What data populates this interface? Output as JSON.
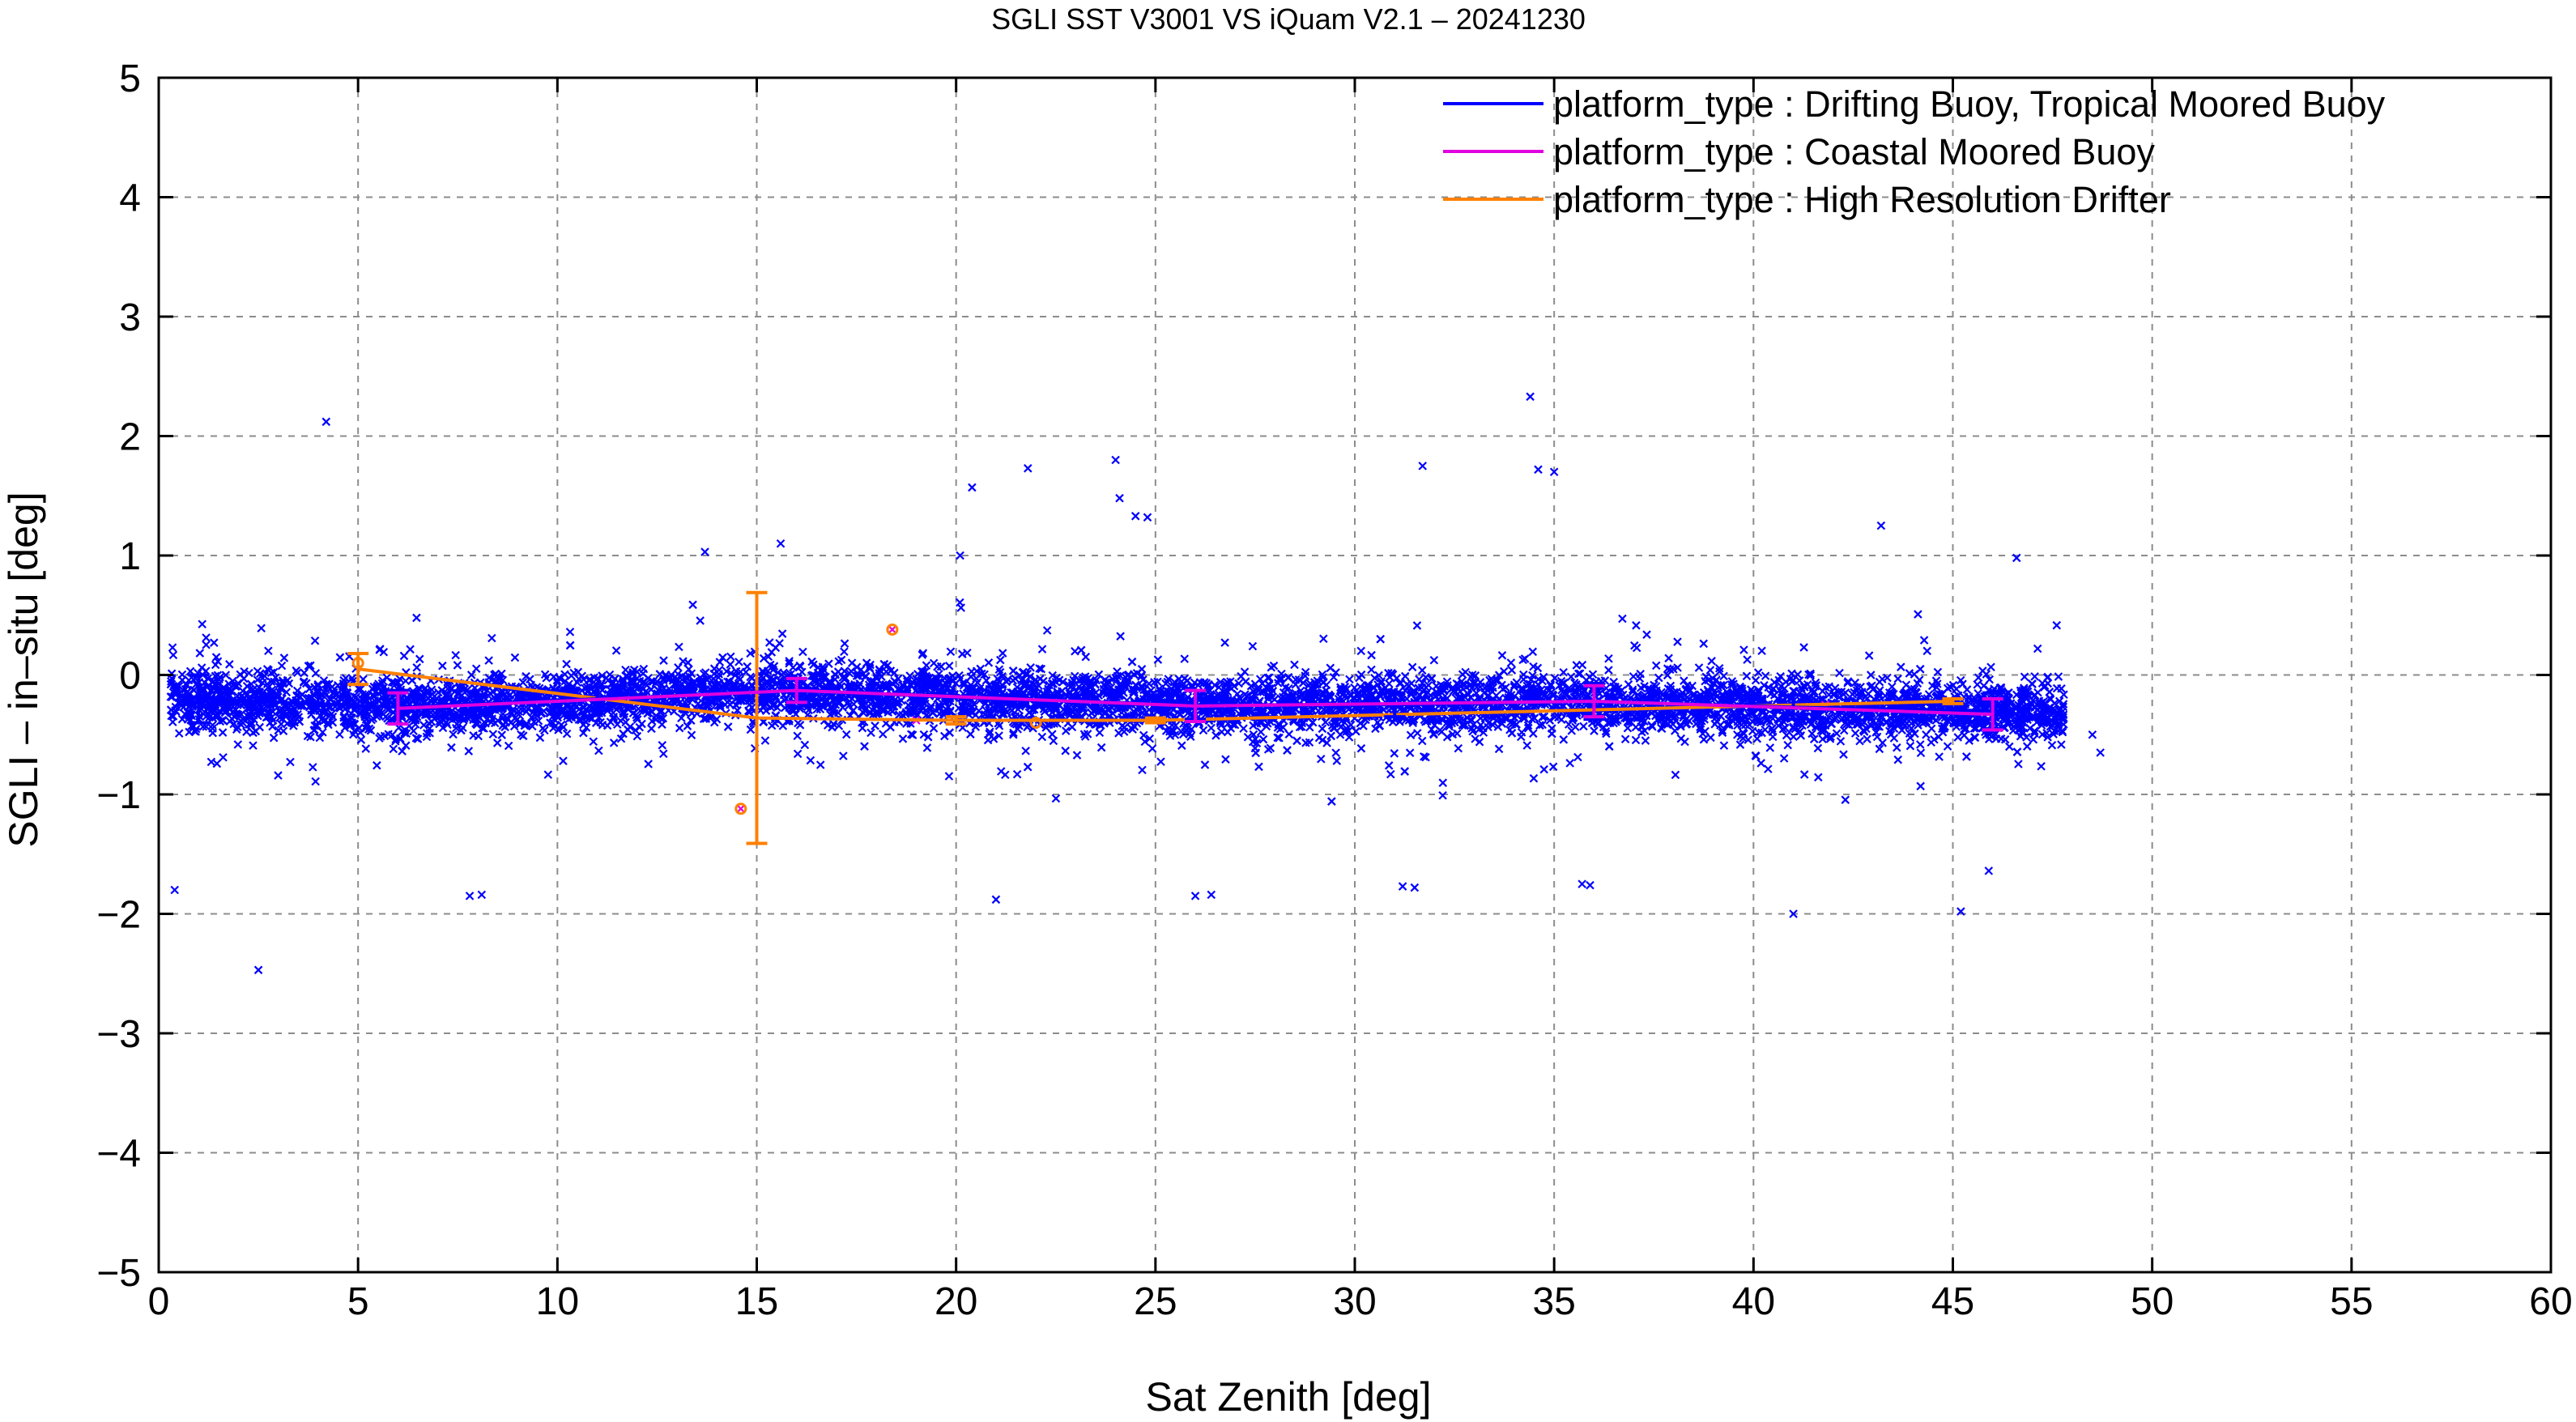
{
  "chart_data": {
    "type": "scatter",
    "title": "SGLI SST V3001 VS iQuam V2.1  – 20241230",
    "xlabel": "Sat Zenith [deg]",
    "ylabel": "SGLI – in–situ [deg]",
    "xlim": [
      0,
      60
    ],
    "ylim": [
      -5,
      5
    ],
    "x_ticks": [
      "0",
      "5",
      "10",
      "15",
      "20",
      "25",
      "30",
      "35",
      "40",
      "45",
      "50",
      "55",
      "60"
    ],
    "y_ticks": [
      "5",
      "4",
      "3",
      "2",
      "1",
      "0",
      "−1",
      "−2",
      "−3",
      "−4",
      "−5"
    ],
    "grid": true,
    "legend_position": "top-right",
    "series": [
      {
        "name": "platform_type : Drifting Buoy, Tropical Moored Buoy",
        "color": "#0000ff",
        "marker": "x",
        "scatter_summary": {
          "x_range": [
            0.3,
            48.7
          ],
          "typical_y_range": [
            -0.8,
            0.3
          ],
          "approx_count": 6500
        },
        "outliers": [
          {
            "x": 4.2,
            "y": 2.12
          },
          {
            "x": 2.5,
            "y": -2.47
          },
          {
            "x": 0.4,
            "y": -1.8
          },
          {
            "x": 20.4,
            "y": 1.57
          },
          {
            "x": 21.8,
            "y": 1.73
          },
          {
            "x": 24.0,
            "y": 1.8
          },
          {
            "x": 24.1,
            "y": 1.48
          },
          {
            "x": 24.5,
            "y": 1.33
          },
          {
            "x": 24.8,
            "y": 1.32
          },
          {
            "x": 31.7,
            "y": 1.75
          },
          {
            "x": 34.4,
            "y": 2.33
          },
          {
            "x": 34.6,
            "y": 1.72
          },
          {
            "x": 35.0,
            "y": 1.7
          },
          {
            "x": 43.2,
            "y": 1.25
          },
          {
            "x": 41.0,
            "y": -2.0
          },
          {
            "x": 45.2,
            "y": -1.98
          },
          {
            "x": 45.9,
            "y": -1.64
          },
          {
            "x": 7.8,
            "y": -1.85
          },
          {
            "x": 8.1,
            "y": -1.84
          },
          {
            "x": 21.0,
            "y": -1.88
          },
          {
            "x": 26.0,
            "y": -1.85
          },
          {
            "x": 26.4,
            "y": -1.84
          },
          {
            "x": 31.2,
            "y": -1.77
          },
          {
            "x": 31.5,
            "y": -1.78
          },
          {
            "x": 35.7,
            "y": -1.75
          },
          {
            "x": 35.9,
            "y": -1.76
          },
          {
            "x": 20.1,
            "y": 1.0
          },
          {
            "x": 13.7,
            "y": 1.03
          },
          {
            "x": 15.6,
            "y": 1.1
          },
          {
            "x": 46.6,
            "y": 0.98
          },
          {
            "x": 48.5,
            "y": -0.5
          },
          {
            "x": 48.7,
            "y": -0.65
          }
        ],
        "binned_mean": [
          {
            "x": 1,
            "y": -0.2,
            "err": 0.2
          },
          {
            "x": 6,
            "y": -0.27,
            "err": 0.14
          },
          {
            "x": 11,
            "y": -0.2,
            "err": 0.1
          },
          {
            "x": 16,
            "y": -0.13,
            "err": 0.1
          },
          {
            "x": 21,
            "y": -0.2,
            "err": 0.1
          },
          {
            "x": 26,
            "y": -0.25,
            "err": 0.12
          },
          {
            "x": 31,
            "y": -0.25,
            "err": 0.1
          },
          {
            "x": 36,
            "y": -0.22,
            "err": 0.15
          },
          {
            "x": 41,
            "y": -0.27,
            "err": 0.1
          },
          {
            "x": 46,
            "y": -0.3,
            "err": 0.15
          }
        ]
      },
      {
        "name": "platform_type : Coastal Moored Buoy",
        "color": "#e000e0",
        "marker": "x",
        "points": [
          {
            "x": 18.4,
            "y": 0.38
          },
          {
            "x": 14.6,
            "y": -1.12
          },
          {
            "x": 19.0,
            "y": -0.38
          },
          {
            "x": 41.8,
            "y": -0.25
          }
        ],
        "binned_mean": [
          {
            "x": 6,
            "y": -0.28,
            "err": 0.13
          },
          {
            "x": 16,
            "y": -0.13,
            "err": 0.1
          },
          {
            "x": 26,
            "y": -0.26,
            "err": 0.13
          },
          {
            "x": 36,
            "y": -0.22,
            "err": 0.13
          },
          {
            "x": 46,
            "y": -0.33,
            "err": 0.13
          }
        ]
      },
      {
        "name": "platform_type : High Resolution Drifter",
        "color": "#ff8000",
        "marker": "o",
        "points": [
          {
            "x": 14.6,
            "y": -1.12
          },
          {
            "x": 18.4,
            "y": 0.38
          },
          {
            "x": 5.0,
            "y": 0.1
          },
          {
            "x": 22.0,
            "y": -0.4
          }
        ],
        "binned_mean": [
          {
            "x": 5,
            "y": 0.05,
            "err": 0.13
          },
          {
            "x": 15,
            "y": -0.36,
            "err": 1.05
          },
          {
            "x": 20,
            "y": -0.38,
            "err": 0.03
          },
          {
            "x": 25,
            "y": -0.38,
            "err": 0.02
          },
          {
            "x": 45,
            "y": -0.22,
            "err": 0.02
          }
        ]
      }
    ]
  }
}
